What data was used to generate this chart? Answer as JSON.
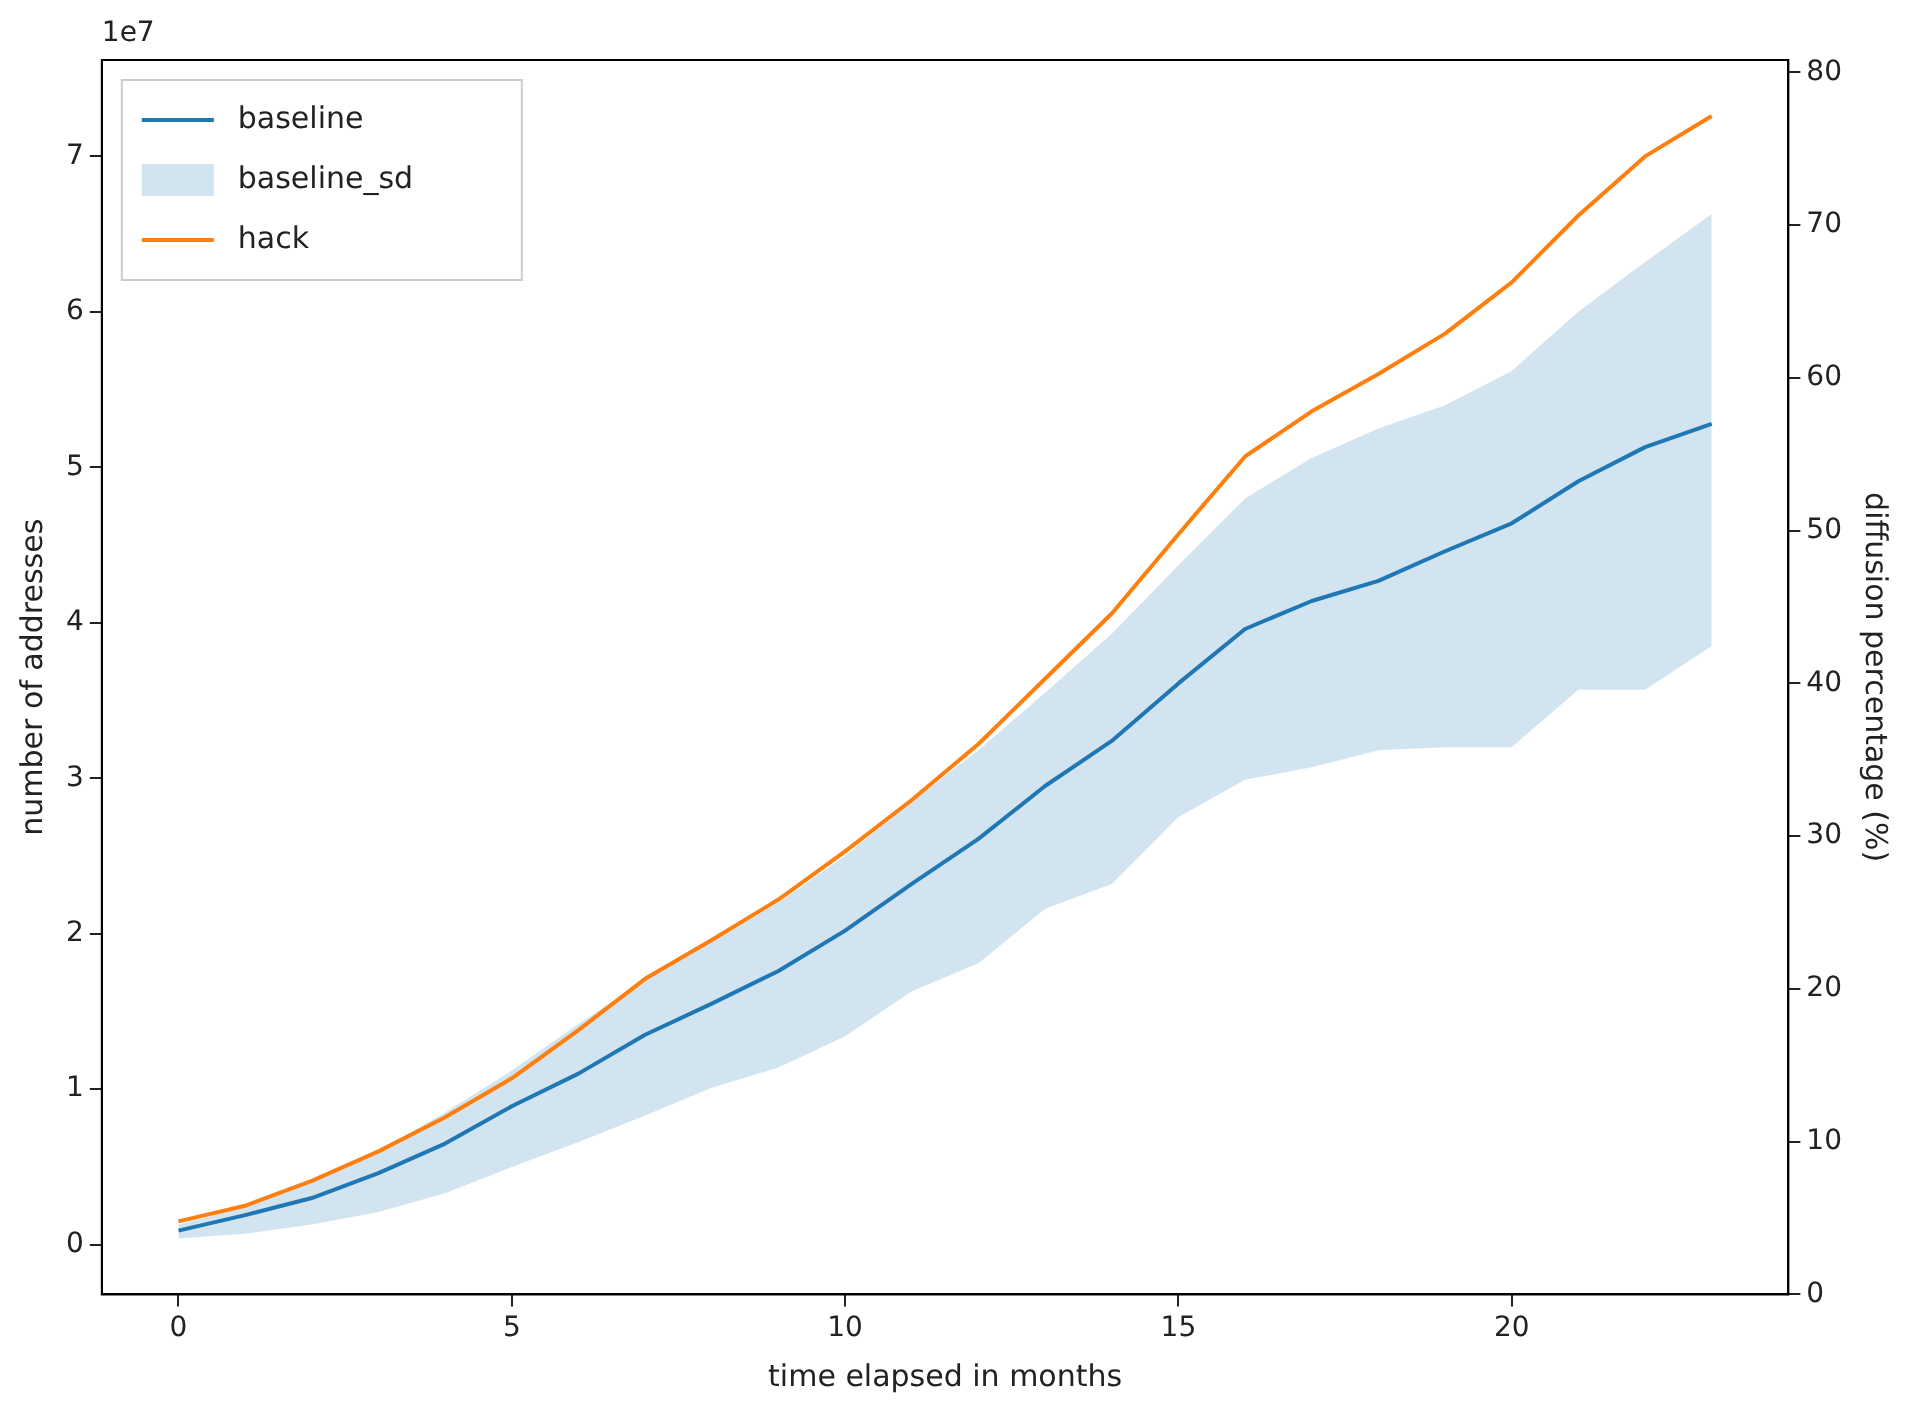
{
  "chart_data": {
    "type": "line",
    "xlabel": "time elapsed in months",
    "ylabel": "number of addresses",
    "y2label": "diffusion percentage (%)",
    "annotations": [
      "1e7"
    ],
    "x": [
      0,
      1,
      2,
      3,
      4,
      5,
      6,
      7,
      8,
      9,
      10,
      11,
      12,
      13,
      14,
      15,
      16,
      17,
      18,
      19,
      20,
      21,
      22,
      23
    ],
    "series": [
      {
        "name": "baseline",
        "color": "#1f77b4",
        "values": [
          0.09,
          0.19,
          0.3,
          0.46,
          0.65,
          0.89,
          1.1,
          1.35,
          1.55,
          1.76,
          2.02,
          2.32,
          2.61,
          2.95,
          3.24,
          3.61,
          3.96,
          4.14,
          4.27,
          4.46,
          4.64,
          4.91,
          5.13,
          5.28
        ]
      },
      {
        "name": "baseline_sd",
        "type": "area",
        "color": "#1f77b4",
        "values": [
          null,
          null,
          null,
          null,
          null,
          null,
          null,
          null,
          null,
          null,
          null,
          null,
          null,
          null,
          null,
          null,
          null,
          null,
          null,
          null,
          null,
          null,
          null,
          null
        ],
        "lower": [
          0.04,
          0.07,
          0.13,
          0.21,
          0.33,
          0.5,
          0.66,
          0.83,
          1.01,
          1.14,
          1.34,
          1.63,
          1.81,
          2.16,
          2.32,
          2.75,
          2.99,
          3.07,
          3.18,
          3.2,
          3.2,
          3.57,
          3.57,
          3.85
        ],
        "upper": [
          0.13,
          0.24,
          0.4,
          0.6,
          0.85,
          1.12,
          1.42,
          1.7,
          1.96,
          2.2,
          2.5,
          2.85,
          3.18,
          3.55,
          3.93,
          4.37,
          4.8,
          5.06,
          5.25,
          5.4,
          5.62,
          6.0,
          6.32,
          6.63
        ]
      },
      {
        "name": "hack",
        "color": "#ff7f0e",
        "values": [
          0.15,
          0.25,
          0.41,
          0.6,
          0.82,
          1.07,
          1.38,
          1.71,
          1.96,
          2.22,
          2.53,
          2.86,
          3.22,
          3.64,
          4.06,
          4.57,
          5.07,
          5.36,
          5.6,
          5.86,
          6.19,
          6.62,
          7.0,
          7.26
        ]
      }
    ],
    "xlim": [
      -1.15,
      24.15
    ],
    "xticks": [
      0,
      5,
      10,
      15,
      20
    ],
    "ylim": [
      -0.32,
      7.62
    ],
    "yticks": [
      0,
      1,
      2,
      3,
      4,
      5,
      6,
      7
    ],
    "y2lim": [
      0,
      80.8
    ],
    "y2ticks": [
      0,
      10,
      20,
      30,
      40,
      50,
      60,
      70,
      80
    ],
    "legend": "top left",
    "grid": false,
    "marker": "none",
    "line_style": "solid"
  }
}
